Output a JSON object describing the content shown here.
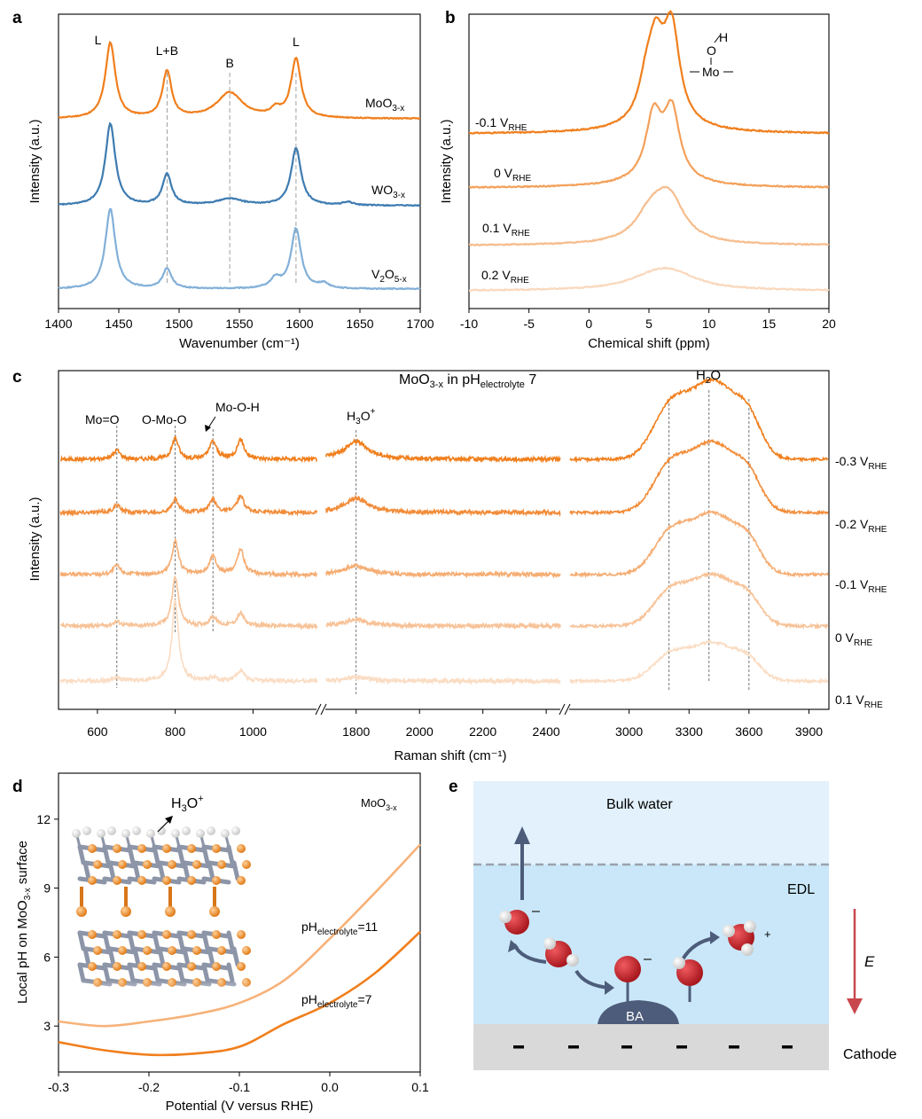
{
  "figure": {
    "panels": {
      "a": "a",
      "b": "b",
      "c": "c",
      "d": "d",
      "e": "e"
    }
  },
  "colors": {
    "orange_dark": "#f07f1d",
    "orange_mid": "#f3a05a",
    "orange_light": "#f6bd8d",
    "orange_pale": "#f9d8bd",
    "blue_dark": "#3e7cb1",
    "blue_light": "#82b0d8",
    "bulk_water": "#e2f1fb",
    "edl": "#c9e7f8",
    "cathode": "#d9d9d9",
    "arrow_slate": "#4d5c7a",
    "oxygen": "#c9272d",
    "field_arrow": "#c8474d"
  },
  "chart_data": [
    {
      "panel": "a",
      "type": "line",
      "xlabel": "Wavenumber (cm⁻¹)",
      "ylabel": "Intensity (a.u.)",
      "xlim": [
        1400,
        1700
      ],
      "xticks": [
        "1400",
        "1450",
        "1500",
        "1550",
        "1600",
        "1650",
        "1700"
      ],
      "peak_markers": [
        {
          "label": "L",
          "x": 1443
        },
        {
          "label": "L+B",
          "x": 1490
        },
        {
          "label": "B",
          "x": 1542
        },
        {
          "label": "L",
          "x": 1597
        }
      ],
      "series": [
        {
          "name": "MoO3-x",
          "label_main": "MoO",
          "label_sub": "3-x",
          "color": "#f07f1d",
          "peaks": [
            [
              1443,
              1.0
            ],
            [
              1490,
              0.62
            ],
            [
              1542,
              0.34
            ],
            [
              1597,
              0.78
            ],
            [
              1580,
              0.1
            ]
          ]
        },
        {
          "name": "WO3-x",
          "label_main": "WO",
          "label_sub": "3-x",
          "color": "#3e7cb1",
          "peaks": [
            [
              1443,
              1.0
            ],
            [
              1490,
              0.38
            ],
            [
              1542,
              0.08
            ],
            [
              1597,
              0.7
            ],
            [
              1640,
              0.04
            ]
          ]
        },
        {
          "name": "V2O5-x",
          "label_main": "V",
          "label_sub1": "2",
          "label_mid": "O",
          "label_sub": "5-x",
          "color": "#82b0d8",
          "peaks": [
            [
              1443,
              1.0
            ],
            [
              1490,
              0.25
            ],
            [
              1580,
              0.12
            ],
            [
              1597,
              0.75
            ],
            [
              1620,
              0.06
            ]
          ]
        }
      ]
    },
    {
      "panel": "b",
      "type": "line",
      "xlabel": "Chemical shift (ppm)",
      "ylabel": "Intensity (a.u.)",
      "xlim": [
        -10,
        20
      ],
      "xticks": [
        "-10",
        "-5",
        "0",
        "5",
        "10",
        "15",
        "20"
      ],
      "inset_labels": {
        "h": "H",
        "o": "O",
        "mo": "Mo"
      },
      "series": [
        {
          "name": "-0.1 VRHE",
          "label_main": "-0.1 V",
          "label_sub": "RHE",
          "color": "#f07f1d",
          "peaks": [
            [
              5.6,
              0.7
            ],
            [
              6.9,
              0.95
            ],
            [
              4.8,
              0.35
            ]
          ]
        },
        {
          "name": "0 VRHE",
          "label_main": "0 V",
          "label_sub": "RHE",
          "color": "#f3a05a",
          "peaks": [
            [
              5.4,
              0.65
            ],
            [
              6.9,
              0.7
            ]
          ]
        },
        {
          "name": "0.1 VRHE",
          "label_main": "0.1 V",
          "label_sub": "RHE",
          "color": "#f6bd8d",
          "peaks": [
            [
              5.0,
              0.22
            ],
            [
              6.1,
              0.2
            ],
            [
              6.9,
              0.3
            ]
          ]
        },
        {
          "name": "0.2 VRHE",
          "label_main": "0.2 V",
          "label_sub": "RHE",
          "color": "#f9d8bd",
          "peaks": [
            [
              5.5,
              0.1
            ],
            [
              7.0,
              0.12
            ]
          ]
        }
      ]
    },
    {
      "panel": "c",
      "type": "line",
      "title_main": "MoO",
      "title_sub1": "3-x",
      "title_mid": " in pH",
      "title_sub2": "electrolyte",
      "title_end": " 7",
      "xlabel": "Raman shift (cm⁻¹)",
      "ylabel": "Intensity (a.u.)",
      "segments": [
        {
          "xlim": [
            500,
            1170
          ],
          "xticks": [
            "600",
            "800",
            "1000"
          ]
        },
        {
          "xlim": [
            1700,
            2450
          ],
          "xticks": [
            "1800",
            "2000",
            "2200",
            "2400"
          ]
        },
        {
          "xlim": [
            2700,
            4000
          ],
          "xticks": [
            "3000",
            "3300",
            "3600",
            "3900"
          ]
        }
      ],
      "peak_labels": [
        {
          "text": "Mo=O",
          "x": 650
        },
        {
          "text": "O-Mo-O",
          "x": 800
        },
        {
          "text": "Mo-O-H",
          "x": 897
        },
        {
          "text": "H3O+",
          "main": "H",
          "sub": "3",
          "mid": "O",
          "sup": "+",
          "x": 1800
        },
        {
          "text": "H2O",
          "main": "H",
          "sub": "2",
          "mid": "O",
          "x": 3400
        }
      ],
      "series": [
        {
          "name": "-0.3 VRHE",
          "label_main": "-0.3 V",
          "label_sub": "RHE",
          "color": "#f07f1d"
        },
        {
          "name": "-0.2 VRHE",
          "label_main": "-0.2 V",
          "label_sub": "RHE",
          "color": "#f28c39"
        },
        {
          "name": "-0.1 VRHE",
          "label_main": "-0.1 V",
          "label_sub": "RHE",
          "color": "#f5ad73"
        },
        {
          "name": "0 VRHE",
          "label_main": "0 V",
          "label_sub": "RHE",
          "color": "#f7c297"
        },
        {
          "name": "0.1 VRHE",
          "label_main": "0.1 V",
          "label_sub": "RHE",
          "color": "#fadcc3"
        }
      ]
    },
    {
      "panel": "d",
      "type": "line",
      "xlabel": "Potential (V versus RHE)",
      "ylabel_main": "Local pH on MoO",
      "ylabel_sub": "3-x",
      "ylabel_end": " surface",
      "xlim": [
        -0.3,
        0.1
      ],
      "ylim": [
        1,
        14
      ],
      "xticks": [
        "-0.3",
        "-0.2",
        "-0.1",
        "0.0",
        "0.1"
      ],
      "yticks": [
        "3",
        "6",
        "9",
        "12"
      ],
      "corner_label_main": "MoO",
      "corner_label_sub": "3-x",
      "inset_main": "H",
      "inset_sub": "3",
      "inset_mid": "O",
      "inset_sup": "+",
      "series": [
        {
          "name": "pHelectrolyte=11",
          "label_main": "pH",
          "label_sub": "electrolyte",
          "label_end": "=11",
          "color": "#f6b27a",
          "x": [
            -0.3,
            -0.25,
            -0.2,
            -0.15,
            -0.1,
            -0.05,
            0.0,
            0.05,
            0.1
          ],
          "y": [
            3.2,
            3.0,
            3.2,
            3.5,
            4.0,
            5.0,
            6.8,
            8.8,
            10.9
          ]
        },
        {
          "name": "pHelectrolyte=7",
          "label_main": "pH",
          "label_sub": "electrolyte",
          "label_end": "=7",
          "color": "#f07f1d",
          "x": [
            -0.3,
            -0.25,
            -0.2,
            -0.15,
            -0.1,
            -0.05,
            0.0,
            0.05,
            0.1
          ],
          "y": [
            2.3,
            1.95,
            1.75,
            1.8,
            2.1,
            3.1,
            4.0,
            5.3,
            7.1
          ]
        }
      ]
    }
  ],
  "schematic": {
    "bulk_water": "Bulk water",
    "edl": "EDL",
    "field": "E",
    "cathode": "Cathode",
    "ba": "BA",
    "minus": "–",
    "plus": "+",
    "charges": [
      "-",
      "-",
      "-",
      "-",
      "-",
      "-"
    ]
  }
}
